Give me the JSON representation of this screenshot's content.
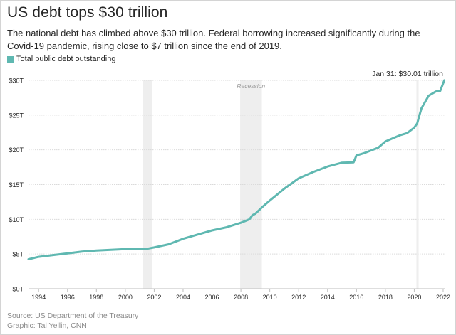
{
  "title": "US debt tops $30 trillion",
  "subtitle": "The national debt has climbed above $30 trillion. Federal borrowing increased significantly during the Covid-19 pandemic, rising close to $7 trillion since the end of 2019.",
  "source": "Source: US Department of the Treasury",
  "credit": "Graphic: Tal Yellin, CNN",
  "colors": {
    "series": "#5fb8b1",
    "recession": "#eeeeee",
    "grid": "#dadada",
    "text": "#262626"
  },
  "chart_data": {
    "type": "line",
    "title": "US debt tops $30 trillion",
    "xlabel": "",
    "ylabel": "",
    "xlim": [
      1993.3,
      2022.1
    ],
    "ylim": [
      0,
      30
    ],
    "grid": true,
    "legend": "top-left",
    "x_ticks": [
      1994,
      1996,
      1998,
      2000,
      2002,
      2004,
      2006,
      2008,
      2010,
      2012,
      2014,
      2016,
      2018,
      2020,
      2022
    ],
    "y_ticks": [
      {
        "value": 0,
        "label": "$0T"
      },
      {
        "value": 5,
        "label": "$5T"
      },
      {
        "value": 10,
        "label": "$10T"
      },
      {
        "value": 15,
        "label": "$15T"
      },
      {
        "value": 20,
        "label": "$20T"
      },
      {
        "value": 25,
        "label": "$25T"
      },
      {
        "value": 30,
        "label": "$30T"
      }
    ],
    "shaded_periods": [
      {
        "start": 2001.2,
        "end": 2001.85,
        "label": ""
      },
      {
        "start": 2007.95,
        "end": 2009.45,
        "label": "Recession"
      },
      {
        "start": 2020.15,
        "end": 2020.3,
        "label": ""
      }
    ],
    "annotation": {
      "x": 2022.08,
      "y": 30.01,
      "label": "Jan 31: $30.01 trillion"
    },
    "series": [
      {
        "name": "Total public debt outstanding",
        "x": [
          1993.3,
          1994,
          1995,
          1996,
          1997,
          1998,
          1999,
          2000,
          2000.5,
          2001,
          2001.5,
          2002,
          2003,
          2004,
          2005,
          2006,
          2007,
          2008,
          2008.6,
          2008.8,
          2009,
          2009.5,
          2010,
          2011,
          2012,
          2013,
          2014,
          2015,
          2015.8,
          2016,
          2016.5,
          2017,
          2017.5,
          2018,
          2019,
          2019.5,
          2020,
          2020.2,
          2020.35,
          2020.5,
          2021,
          2021.5,
          2021.8,
          2022.08
        ],
        "y": [
          4.25,
          4.6,
          4.85,
          5.1,
          5.35,
          5.5,
          5.6,
          5.7,
          5.68,
          5.7,
          5.75,
          5.95,
          6.4,
          7.2,
          7.8,
          8.4,
          8.85,
          9.5,
          10.0,
          10.6,
          10.8,
          11.8,
          12.7,
          14.4,
          15.9,
          16.8,
          17.6,
          18.15,
          18.2,
          19.2,
          19.5,
          19.9,
          20.3,
          21.2,
          22.1,
          22.4,
          23.2,
          23.8,
          24.9,
          26.0,
          27.8,
          28.4,
          28.5,
          30.01
        ]
      }
    ]
  }
}
